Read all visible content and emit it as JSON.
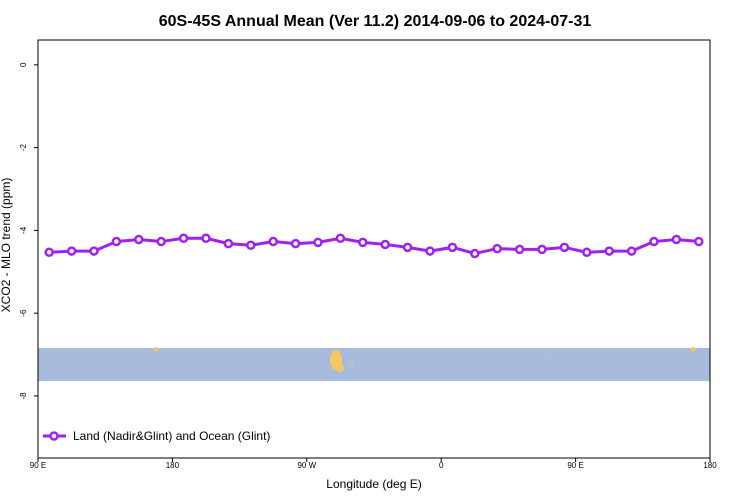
{
  "chart_data": {
    "type": "line",
    "title": "60S-45S Annual Mean (Ver 11.2)   2014-09-06 to 2024-07-31",
    "x_label": "Longitude (deg E)",
    "y_label": "XCO2 - MLO trend (ppm)",
    "x": [
      97.5,
      112.5,
      127.5,
      142.5,
      157.5,
      172.5,
      187.5,
      202.5,
      217.5,
      232.5,
      247.5,
      262.5,
      277.5,
      292.5,
      307.5,
      322.5,
      337.5,
      352.5,
      367.5,
      382.5,
      397.5,
      412.5,
      427.5,
      442.5,
      457.5,
      472.5,
      487.5,
      502.5,
      517.5,
      532.5
    ],
    "series": [
      {
        "name": "Land (Nadir&Glint) and Ocean (Glint)",
        "color": "#a020f0",
        "values": [
          -4.53,
          -4.5,
          -4.5,
          -4.27,
          -4.22,
          -4.27,
          -4.19,
          -4.19,
          -4.32,
          -4.36,
          -4.27,
          -4.32,
          -4.29,
          -4.19,
          -4.29,
          -4.34,
          -4.41,
          -4.5,
          -4.41,
          -4.56,
          -4.44,
          -4.46,
          -4.46,
          -4.41,
          -4.53,
          -4.5,
          -4.5,
          -4.27,
          -4.22,
          -4.27
        ]
      }
    ],
    "xlim": [
      90,
      540
    ],
    "xticks": [
      {
        "value": 90,
        "label": "90 E"
      },
      180,
      {
        "value": 270,
        "label": "90 W"
      },
      {
        "value": 360,
        "label": "0"
      },
      {
        "value": 450,
        "label": "90 E"
      },
      {
        "value": 540,
        "label": "180"
      }
    ],
    "ylim": [
      -9.5,
      0.6
    ],
    "yticks": [
      0,
      -2,
      -4,
      -6,
      -8
    ],
    "legend": "bottom-left"
  }
}
